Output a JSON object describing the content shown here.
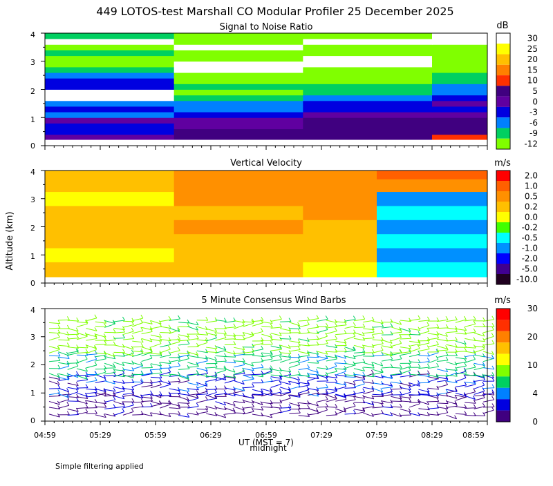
{
  "figure": {
    "title": "449 LOTOS-test Marshall CO Modular Profiler 25 December 2025",
    "footer_note": "Simple filtering applied",
    "shared_ylabel": "Altitude (km)",
    "x_axis": {
      "label": "UT (MST = 7)",
      "sublabel": "midnight",
      "tick_labels": [
        "04:59",
        "05:29",
        "05:59",
        "06:29",
        "06:59",
        "07:29",
        "07:59",
        "08:29",
        "08:59"
      ]
    },
    "background_color": "#ffffff"
  },
  "chart_data": [
    {
      "type": "heatmap",
      "title": "Signal to Noise Ratio",
      "ylabel": "Altitude (km)",
      "xlabel": "UT (MST = 7)",
      "x_range": [
        "04:59",
        "08:59"
      ],
      "ylim": [
        0,
        4
      ],
      "y_ticks": [
        "0",
        "1",
        "2",
        "3",
        "4"
      ],
      "grid": false,
      "colorbar": {
        "unit": "dB",
        "labels": [
          "30",
          "25",
          "20",
          "15",
          "10",
          "5",
          "0",
          "-3",
          "-6",
          "-9",
          "-12"
        ],
        "colors": [
          "#ffffff",
          "#ffff00",
          "#ffc000",
          "#ff8000",
          "#ff3000",
          "#400080",
          "#6000a0",
          "#0000e0",
          "#0080ff",
          "#00d060",
          "#80ff00"
        ]
      },
      "rows": {
        "altitudes_km": [
          0.3,
          0.5,
          0.7,
          0.9,
          1.1,
          1.3,
          1.5,
          1.7,
          1.9,
          2.1,
          2.3,
          2.5,
          2.7,
          2.9,
          3.1,
          3.3,
          3.5,
          3.7,
          3.9
        ],
        "segments": [
          "04:59-06:09",
          "06:09-07:19",
          "07:19-08:29",
          "08:29-08:59"
        ],
        "values_db": [
          [
            0,
            3,
            5,
            8
          ],
          [
            -3,
            3,
            5,
            5
          ],
          [
            -3,
            0,
            3,
            3
          ],
          [
            0,
            0,
            3,
            3
          ],
          [
            -6,
            -3,
            0,
            0
          ],
          [
            -3,
            -6,
            -3,
            -3
          ],
          [
            -6,
            -6,
            -3,
            0
          ],
          [
            30,
            -9,
            -6,
            -3
          ],
          [
            30,
            -12,
            -9,
            -6
          ],
          [
            -3,
            -9,
            -9,
            -6
          ],
          [
            -3,
            -12,
            -12,
            -9
          ],
          [
            -6,
            -12,
            -12,
            -9
          ],
          [
            -9,
            30,
            -12,
            -12
          ],
          [
            -12,
            30,
            30,
            -12
          ],
          [
            -12,
            -12,
            30,
            -12
          ],
          [
            -9,
            -12,
            -12,
            -12
          ],
          [
            -12,
            30,
            -12,
            -12
          ],
          [
            30,
            -12,
            30,
            30
          ],
          [
            -9,
            -12,
            -12,
            30
          ]
        ]
      }
    },
    {
      "type": "heatmap",
      "title": "Vertical Velocity",
      "ylabel": "Altitude (km)",
      "xlabel": "UT (MST = 7)",
      "x_range": [
        "04:59",
        "08:59"
      ],
      "ylim": [
        0,
        4
      ],
      "y_ticks": [
        "0",
        "1",
        "2",
        "3",
        "4"
      ],
      "grid": false,
      "colorbar": {
        "unit": "m/s",
        "labels": [
          "2.0",
          "1.0",
          "0.5",
          "0.2",
          "0.0",
          "-0.2",
          "-0.5",
          "-1.0",
          "-2.0",
          "-5.0",
          "-10.0"
        ],
        "colors": [
          "#ff0000",
          "#ff6000",
          "#ff9000",
          "#ffc000",
          "#ffff00",
          "#40ff00",
          "#00ffff",
          "#0090ff",
          "#0000ff",
          "#400090",
          "#200020"
        ]
      },
      "rows": {
        "altitudes_km": [
          0.5,
          1.0,
          1.5,
          2.0,
          2.5,
          3.0,
          3.5,
          3.9
        ],
        "segments": [
          "04:59-06:09",
          "06:09-07:19",
          "07:19-07:59",
          "07:59-08:59"
        ],
        "values_ms": [
          [
            0.2,
            0.2,
            0.0,
            -0.5
          ],
          [
            0.0,
            0.2,
            0.2,
            -1.0
          ],
          [
            0.2,
            0.2,
            0.2,
            -0.5
          ],
          [
            0.2,
            0.5,
            0.2,
            -1.0
          ],
          [
            0.2,
            0.2,
            0.5,
            -0.5
          ],
          [
            0.0,
            0.5,
            0.5,
            -1.0
          ],
          [
            0.2,
            0.5,
            0.5,
            0.5
          ],
          [
            0.2,
            0.5,
            0.5,
            1.0
          ]
        ]
      }
    },
    {
      "type": "scatter",
      "subtype": "wind-barbs",
      "title": "5 Minute Consensus Wind Barbs",
      "ylabel": "Altitude (km)",
      "xlabel": "UT (MST = 7)",
      "x_range": [
        "04:59",
        "08:59"
      ],
      "ylim": [
        0,
        4
      ],
      "y_ticks": [
        "0",
        "1",
        "2",
        "3",
        "4"
      ],
      "grid": false,
      "colorbar": {
        "unit": "m/s",
        "labels": [
          "30",
          "20",
          "10",
          "4",
          "0"
        ],
        "colors": [
          "#ff0000",
          "#ff3000",
          "#ff8000",
          "#ffc000",
          "#ffff00",
          "#80ff00",
          "#00d060",
          "#0080ff",
          "#0000e0",
          "#400080"
        ]
      },
      "speed_layers": [
        {
          "altitude_km_range": [
            0.2,
            0.9
          ],
          "speed_ms": 3
        },
        {
          "altitude_km_range": [
            0.9,
            1.6
          ],
          "speed_ms": 5
        },
        {
          "altitude_km_range": [
            1.6,
            2.4
          ],
          "speed_ms": 9
        },
        {
          "altitude_km_range": [
            2.4,
            3.7
          ],
          "speed_ms": 12
        }
      ]
    }
  ]
}
